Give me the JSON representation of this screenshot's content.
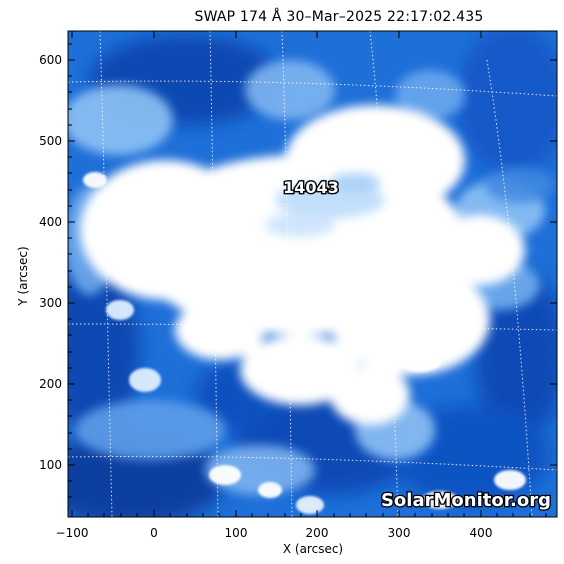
{
  "title": "SWAP 174 Å 30–Mar–2025 22:17:02.435",
  "x_axis": {
    "label": "X (arcsec)",
    "ticks": [
      "−100",
      "0",
      "100",
      "200",
      "300",
      "400"
    ]
  },
  "y_axis": {
    "label": "Y (arcsec)",
    "ticks": [
      "100",
      "200",
      "300",
      "400",
      "500",
      "600"
    ]
  },
  "region_label": "14043",
  "watermark": "SolarMonitor.org",
  "colors": {
    "background": "#ffffff",
    "deep_blue": "#0a3d9e",
    "mid_blue": "#1e6fd8",
    "light_blue": "#7fb6f1",
    "saturated": "#ffffff"
  }
}
